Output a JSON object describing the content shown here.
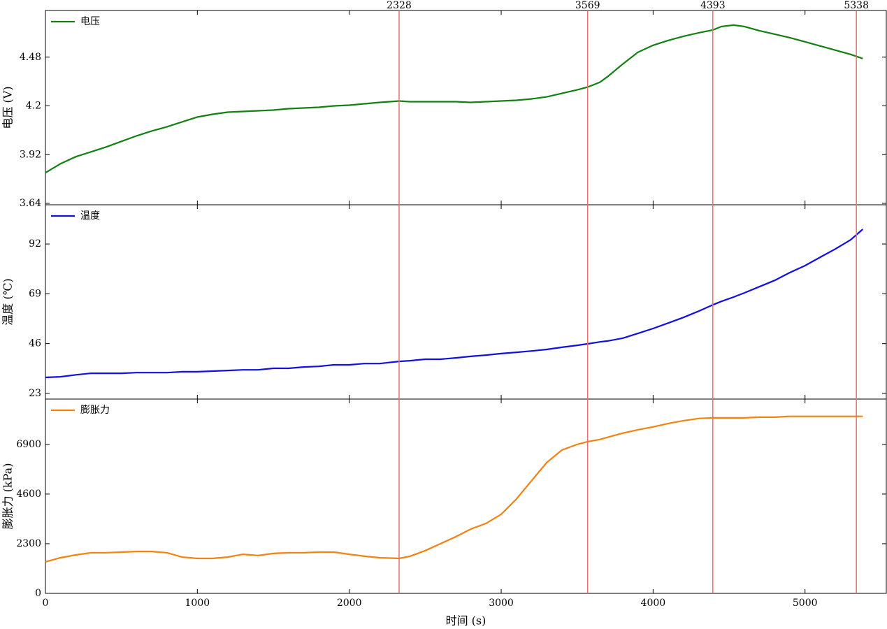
{
  "chart_data": [
    {
      "type": "line",
      "ylabel": "电压 (V)",
      "legend": "upper left",
      "ylim": [
        3.632,
        4.748
      ],
      "yticks": [
        3.64,
        3.92,
        4.2,
        4.48
      ],
      "vlines": [
        2328,
        3569,
        4393,
        5338
      ],
      "vline_color": "#e8716f",
      "x": [
        0,
        100,
        200,
        300,
        400,
        500,
        600,
        700,
        800,
        900,
        1000,
        1100,
        1200,
        1300,
        1400,
        1500,
        1600,
        1700,
        1800,
        1900,
        2000,
        2100,
        2200,
        2328,
        2400,
        2500,
        2600,
        2700,
        2800,
        2900,
        3000,
        3100,
        3200,
        3300,
        3400,
        3500,
        3569,
        3650,
        3700,
        3800,
        3900,
        4000,
        4100,
        4200,
        4300,
        4393,
        4450,
        4530,
        4600,
        4700,
        4800,
        4900,
        5000,
        5100,
        5200,
        5300,
        5380
      ],
      "series": [
        {
          "name": "电压",
          "color": "#138013",
          "values": [
            3.816,
            3.868,
            3.908,
            3.936,
            3.964,
            3.996,
            4.028,
            4.056,
            4.08,
            4.108,
            4.136,
            4.152,
            4.164,
            4.168,
            4.172,
            4.176,
            4.184,
            4.188,
            4.192,
            4.2,
            4.204,
            4.212,
            4.22,
            4.228,
            4.224,
            4.224,
            4.224,
            4.224,
            4.22,
            4.224,
            4.228,
            4.232,
            4.24,
            4.252,
            4.272,
            4.292,
            4.308,
            4.336,
            4.368,
            4.44,
            4.508,
            4.548,
            4.576,
            4.6,
            4.62,
            4.636,
            4.656,
            4.664,
            4.656,
            4.632,
            4.612,
            4.592,
            4.568,
            4.544,
            4.52,
            4.496,
            4.472
          ]
        }
      ]
    },
    {
      "type": "line",
      "ylabel": "温度 (℃)",
      "legend": "upper left",
      "ylim": [
        20.4,
        110.1
      ],
      "yticks": [
        23,
        46,
        69,
        92
      ],
      "x": [
        0,
        100,
        200,
        300,
        400,
        500,
        600,
        700,
        800,
        900,
        1000,
        1100,
        1200,
        1300,
        1400,
        1500,
        1600,
        1700,
        1800,
        1900,
        2000,
        2100,
        2200,
        2328,
        2400,
        2500,
        2600,
        2700,
        2800,
        2900,
        3000,
        3100,
        3200,
        3300,
        3400,
        3500,
        3569,
        3650,
        3700,
        3800,
        3900,
        4000,
        4100,
        4200,
        4300,
        4393,
        4450,
        4530,
        4600,
        4700,
        4800,
        4900,
        5000,
        5100,
        5200,
        5300,
        5380
      ],
      "series": [
        {
          "name": "温度",
          "color": "#1010e0",
          "values": [
            30.4,
            30.7,
            31.6,
            32.3,
            32.3,
            32.3,
            32.6,
            32.6,
            32.6,
            33.0,
            33.0,
            33.3,
            33.6,
            33.9,
            33.9,
            34.6,
            34.6,
            35.2,
            35.5,
            36.2,
            36.2,
            36.8,
            36.8,
            37.8,
            38.1,
            38.8,
            38.8,
            39.4,
            40.1,
            40.7,
            41.4,
            42.0,
            42.6,
            43.3,
            44.3,
            45.2,
            45.9,
            46.8,
            47.2,
            48.5,
            50.7,
            53.0,
            55.5,
            58.1,
            61.0,
            63.9,
            65.5,
            67.5,
            69.4,
            72.3,
            75.2,
            78.8,
            82.0,
            85.9,
            89.7,
            93.9,
            98.8
          ]
        }
      ]
    },
    {
      "type": "line",
      "ylabel": "膨胀力 (kPa)",
      "xlabel": "时间 (s)",
      "legend": "upper left",
      "ylim": [
        0,
        9000
      ],
      "yticks": [
        0,
        2300,
        4600,
        6900
      ],
      "xlim": [
        0,
        5535
      ],
      "xticks": [
        0,
        1000,
        2000,
        3000,
        4000,
        5000
      ],
      "x": [
        0,
        100,
        200,
        300,
        400,
        500,
        600,
        700,
        800,
        900,
        1000,
        1100,
        1200,
        1300,
        1400,
        1500,
        1600,
        1700,
        1800,
        1900,
        2000,
        2100,
        2200,
        2328,
        2400,
        2500,
        2600,
        2700,
        2800,
        2900,
        3000,
        3100,
        3200,
        3300,
        3400,
        3500,
        3569,
        3650,
        3700,
        3800,
        3900,
        4000,
        4100,
        4200,
        4300,
        4393,
        4450,
        4530,
        4600,
        4700,
        4800,
        4900,
        5000,
        5100,
        5200,
        5300,
        5380
      ],
      "series": [
        {
          "name": "膨胀力",
          "color": "#f5820f",
          "values": [
            1460,
            1650,
            1780,
            1880,
            1880,
            1910,
            1940,
            1940,
            1880,
            1680,
            1620,
            1620,
            1680,
            1810,
            1750,
            1850,
            1880,
            1880,
            1910,
            1910,
            1810,
            1720,
            1650,
            1620,
            1720,
            1980,
            2300,
            2620,
            2980,
            3240,
            3660,
            4370,
            5220,
            6060,
            6640,
            6900,
            7030,
            7130,
            7230,
            7420,
            7580,
            7710,
            7870,
            8000,
            8100,
            8130,
            8130,
            8130,
            8130,
            8160,
            8160,
            8200,
            8200,
            8200,
            8200,
            8200,
            8200
          ]
        }
      ]
    }
  ]
}
